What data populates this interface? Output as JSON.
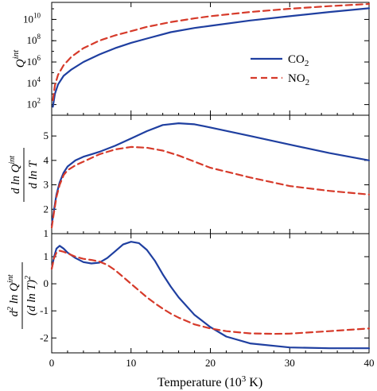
{
  "chart_data": [
    {
      "type": "line",
      "ylabel": "Q^int",
      "yscale": "log",
      "xlim": [
        0,
        40
      ],
      "ylim_log10": [
        1.0,
        11.6
      ],
      "y_ticks": [
        {
          "exp": 2,
          "label": "10",
          "sup": "2"
        },
        {
          "exp": 4,
          "label": "10",
          "sup": "4"
        },
        {
          "exp": 6,
          "label": "10",
          "sup": "6"
        },
        {
          "exp": 8,
          "label": "10",
          "sup": "8"
        },
        {
          "exp": 10,
          "label": "10",
          "sup": "10"
        }
      ],
      "legend_position": "center-right",
      "series": [
        {
          "name": "CO2",
          "name_main": "CO",
          "name_sub": "2",
          "color": "#1f3fa0",
          "dash": "solid",
          "x": [
            0.15,
            0.4,
            0.8,
            1.5,
            2.5,
            4,
            6,
            8,
            10,
            12,
            15,
            18,
            20,
            25,
            30,
            35,
            40
          ],
          "log10_y": [
            1.8,
            3.0,
            3.9,
            4.7,
            5.3,
            6.0,
            6.7,
            7.3,
            7.8,
            8.2,
            8.8,
            9.2,
            9.4,
            9.9,
            10.3,
            10.7,
            11.05
          ]
        },
        {
          "name": "NO2",
          "name_main": "NO",
          "name_sub": "2",
          "color": "#d63a2a",
          "dash": "dashed",
          "x": [
            0.15,
            0.4,
            0.8,
            1.5,
            2.5,
            4,
            6,
            8,
            10,
            12,
            15,
            18,
            20,
            25,
            30,
            35,
            40
          ],
          "log10_y": [
            2.4,
            3.8,
            4.8,
            5.7,
            6.5,
            7.3,
            8.0,
            8.5,
            8.9,
            9.3,
            9.75,
            10.1,
            10.3,
            10.7,
            11.0,
            11.25,
            11.45
          ]
        }
      ]
    },
    {
      "type": "line",
      "ylabel": "d ln Q^int / d ln T",
      "xlim": [
        0,
        40
      ],
      "ylim": [
        1.0,
        5.85
      ],
      "y_ticks": [
        1,
        2,
        3,
        4,
        5
      ],
      "series": [
        {
          "name": "CO2",
          "color": "#1f3fa0",
          "dash": "solid",
          "x": [
            0,
            0.3,
            0.6,
            1,
            1.5,
            2,
            3,
            4,
            5,
            6,
            8,
            10,
            12,
            14,
            16,
            18,
            20,
            25,
            30,
            35,
            40
          ],
          "y": [
            1.35,
            2.0,
            2.6,
            3.1,
            3.5,
            3.75,
            4.0,
            4.15,
            4.25,
            4.35,
            4.6,
            4.9,
            5.2,
            5.45,
            5.52,
            5.48,
            5.35,
            5.0,
            4.65,
            4.3,
            4.0
          ]
        },
        {
          "name": "NO2",
          "color": "#d63a2a",
          "dash": "dashed",
          "x": [
            0,
            0.3,
            0.6,
            1,
            1.5,
            2,
            3,
            4,
            5,
            6,
            8,
            10,
            12,
            14,
            16,
            18,
            20,
            25,
            30,
            35,
            40
          ],
          "y": [
            1.25,
            1.9,
            2.5,
            3.0,
            3.4,
            3.6,
            3.8,
            3.95,
            4.1,
            4.25,
            4.45,
            4.55,
            4.52,
            4.4,
            4.2,
            3.95,
            3.7,
            3.3,
            2.95,
            2.75,
            2.6
          ]
        }
      ]
    },
    {
      "type": "line",
      "ylabel": "d² ln Q^int / (d ln T)²",
      "xlabel": "Temperature (10³ K)",
      "xlim": [
        0,
        40
      ],
      "x_ticks": [
        0,
        10,
        20,
        30,
        40
      ],
      "ylim": [
        -2.55,
        1.85
      ],
      "y_ticks": [
        -2,
        -1,
        0,
        1
      ],
      "series": [
        {
          "name": "CO2",
          "color": "#1f3fa0",
          "dash": "solid",
          "x": [
            0,
            0.3,
            0.6,
            1,
            1.5,
            2,
            3,
            4,
            5,
            6,
            7,
            8,
            9,
            10,
            11,
            12,
            13,
            14,
            15,
            16,
            18,
            20,
            22,
            25,
            30,
            35,
            40
          ],
          "y": [
            0.55,
            1.0,
            1.3,
            1.4,
            1.3,
            1.15,
            0.95,
            0.8,
            0.75,
            0.78,
            0.95,
            1.2,
            1.45,
            1.55,
            1.5,
            1.25,
            0.85,
            0.35,
            -0.1,
            -0.5,
            -1.15,
            -1.6,
            -1.95,
            -2.2,
            -2.35,
            -2.38,
            -2.38
          ]
        },
        {
          "name": "NO2",
          "color": "#d63a2a",
          "dash": "dashed",
          "x": [
            0,
            0.3,
            0.6,
            1,
            1.5,
            2,
            3,
            4,
            5,
            6,
            7,
            8,
            9,
            10,
            11,
            12,
            13,
            14,
            15,
            16,
            18,
            20,
            22,
            25,
            28,
            30,
            35,
            40
          ],
          "y": [
            0.55,
            0.95,
            1.15,
            1.22,
            1.18,
            1.12,
            1.0,
            0.92,
            0.88,
            0.82,
            0.7,
            0.5,
            0.25,
            0.0,
            -0.25,
            -0.5,
            -0.72,
            -0.92,
            -1.1,
            -1.25,
            -1.5,
            -1.65,
            -1.75,
            -1.83,
            -1.85,
            -1.84,
            -1.75,
            -1.65
          ]
        }
      ]
    }
  ]
}
